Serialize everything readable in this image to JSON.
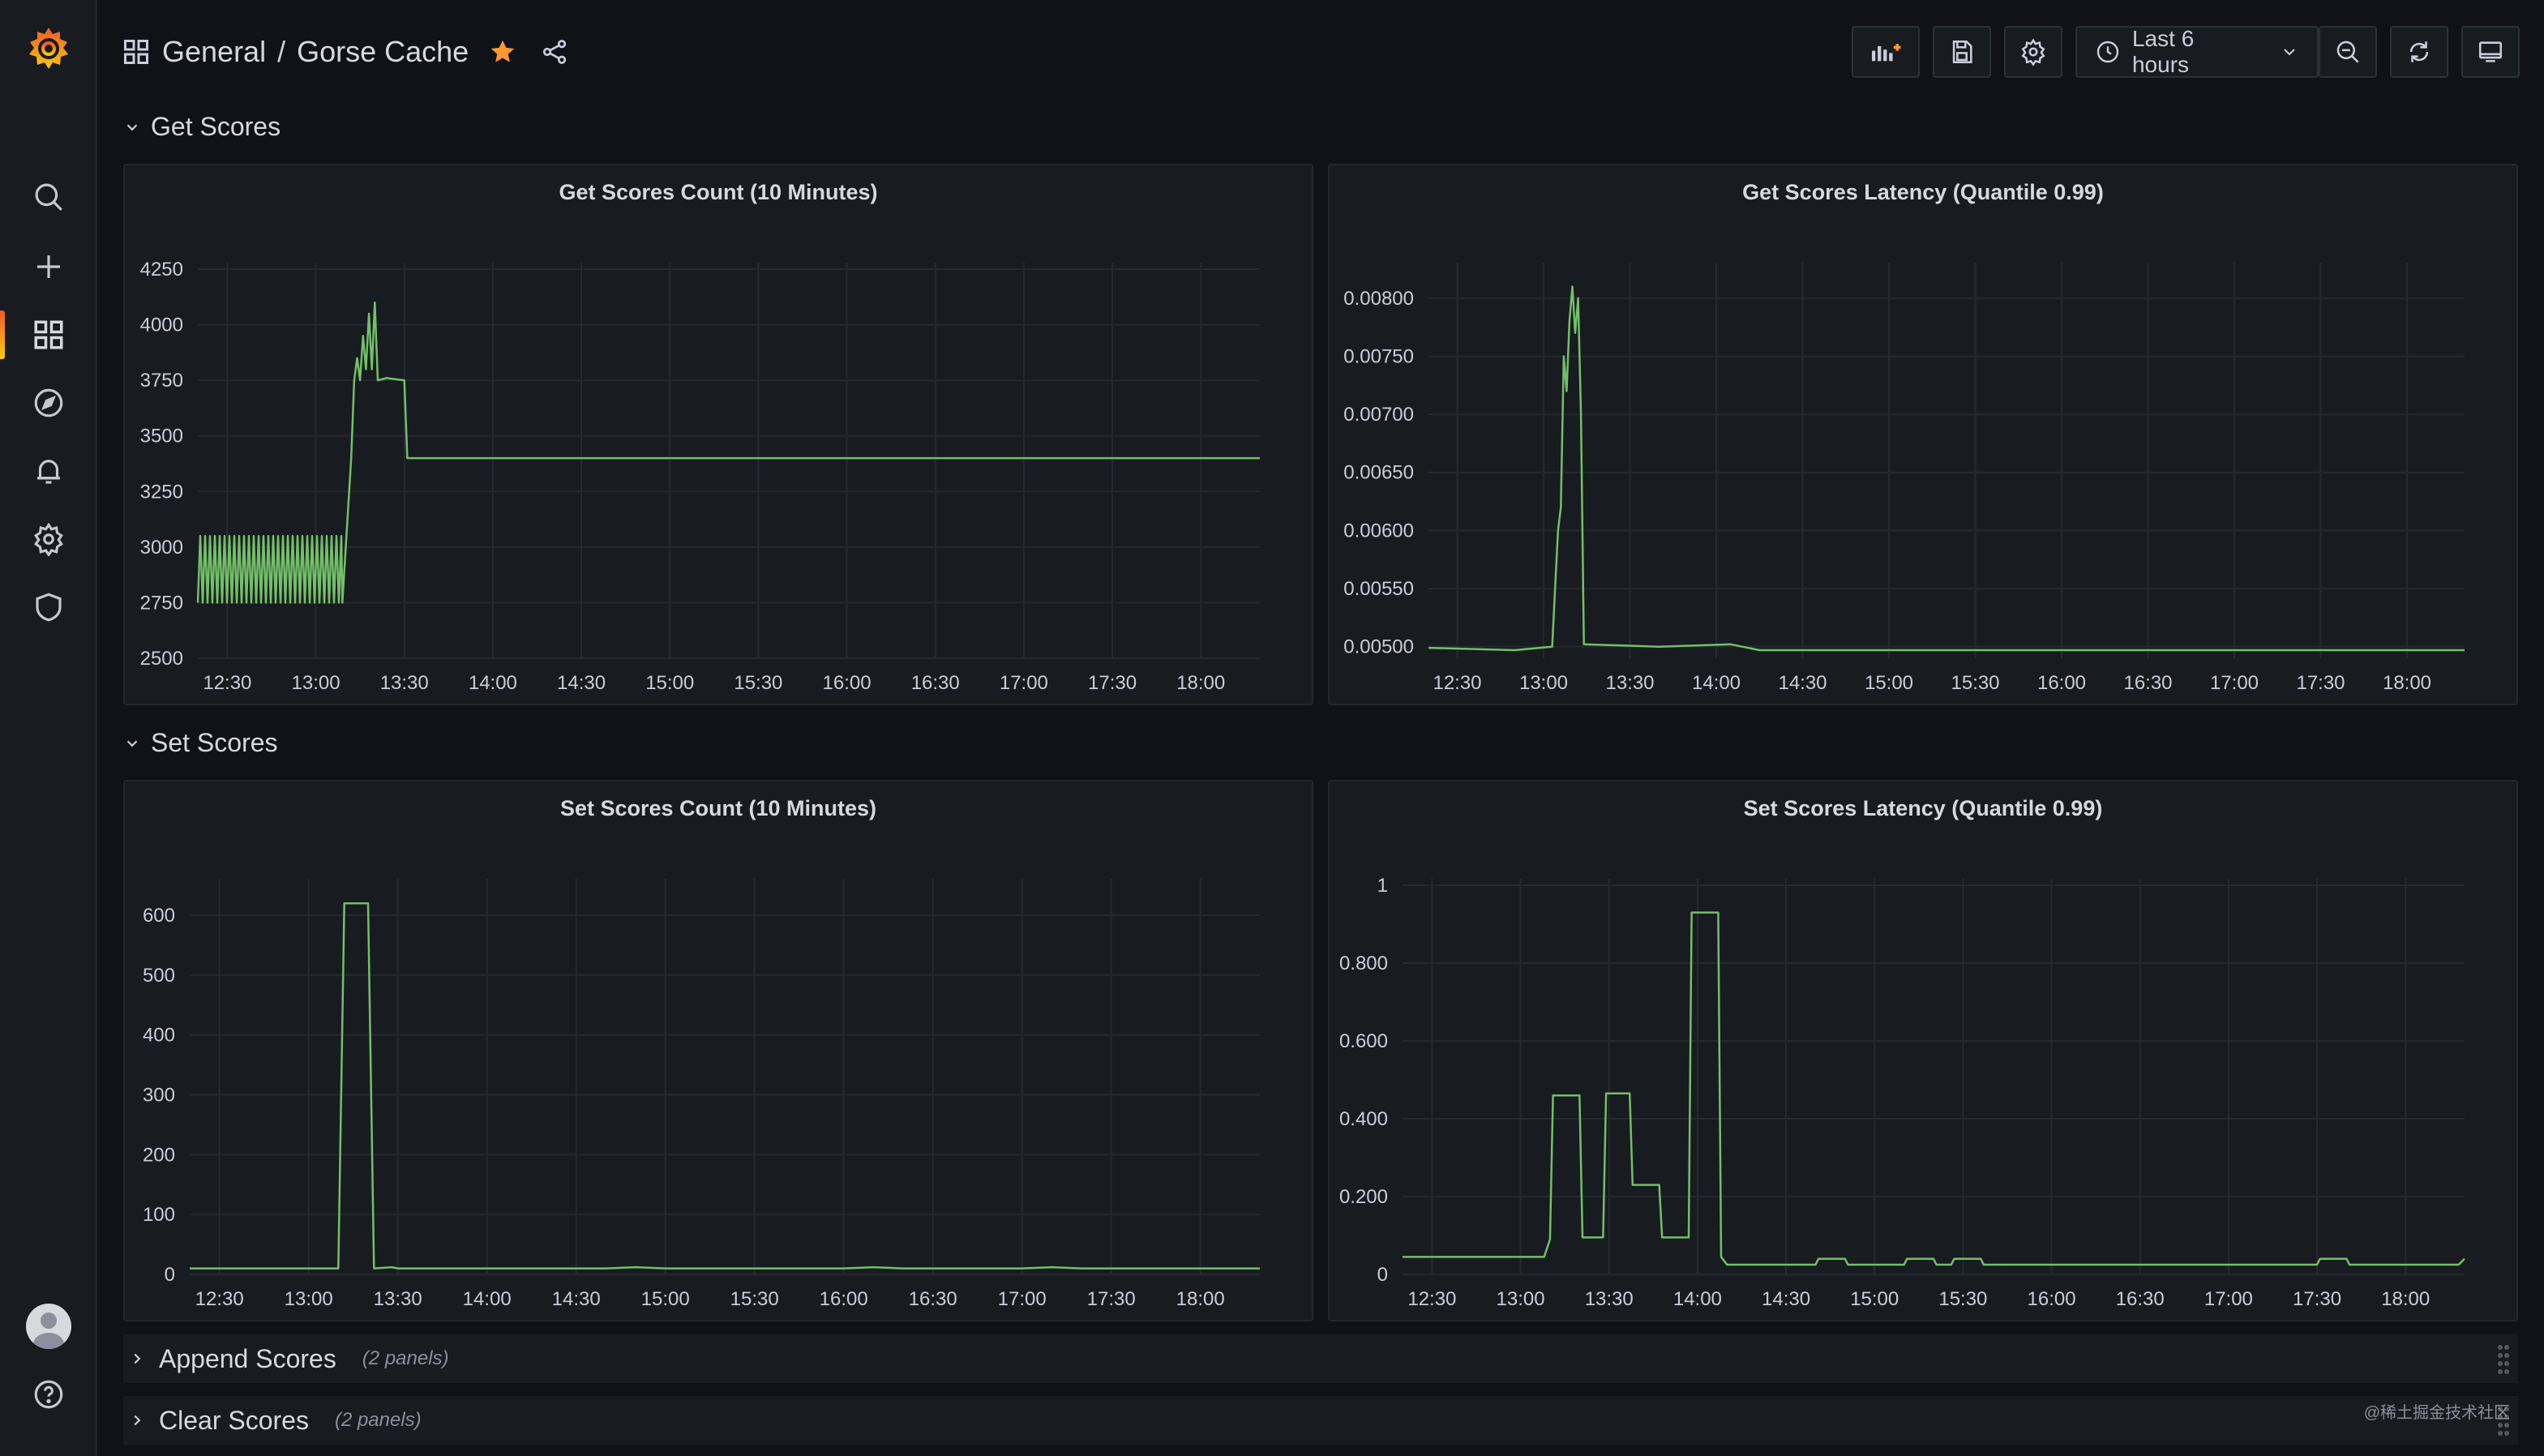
{
  "header": {
    "folder": "General",
    "separator": "/",
    "dashboard": "Gorse Cache",
    "time_range": "Last 6 hours"
  },
  "sidebar": {
    "icons": [
      "grafana-logo-icon",
      "search-icon",
      "plus-icon",
      "dashboards-icon",
      "explore-icon",
      "alerting-icon",
      "settings-icon",
      "shield-icon",
      "avatar",
      "help-icon"
    ],
    "active": "dashboards-icon"
  },
  "toolbar_icons": [
    "add-panel-icon",
    "save-icon",
    "settings-icon",
    "clock-icon",
    "chevron-down-icon",
    "zoom-out-icon",
    "refresh-icon",
    "tv-mode-icon"
  ],
  "rows": {
    "get_scores": "Get Scores",
    "set_scores": "Set Scores",
    "append_scores": "Append Scores",
    "append_count": "(2 panels)",
    "clear_scores": "Clear Scores",
    "clear_count": "(2 panels)"
  },
  "watermark": "@稀土掘金技术社区",
  "colors": {
    "series": "#73bf69",
    "accent": "#f05a28",
    "star": "#ff9830"
  },
  "chart_data": [
    {
      "type": "line",
      "title": "Get Scores Count (10 Minutes)",
      "x_ticks": [
        "12:30",
        "13:00",
        "13:30",
        "14:00",
        "14:30",
        "15:00",
        "15:30",
        "16:00",
        "16:30",
        "17:00",
        "17:30",
        "18:00"
      ],
      "y_ticks": [
        "4250",
        "4000",
        "3750",
        "3500",
        "3250",
        "3000",
        "2750",
        "2500"
      ],
      "ylim": [
        2500,
        4250
      ],
      "x_range": [
        "12:20",
        "18:20"
      ],
      "grid": true,
      "series": [
        {
          "color": "#73bf69",
          "points": [
            [
              "12:20",
              2750
            ],
            [
              "12:20",
              3050
            ],
            [
              "13:09",
              3050
            ],
            [
              "13:09",
              2750
            ],
            [
              "13:12",
              3400
            ],
            [
              "13:13",
              3750
            ],
            [
              "13:14",
              3850
            ],
            [
              "13:15",
              3750
            ],
            [
              "13:16",
              3950
            ],
            [
              "13:17",
              3800
            ],
            [
              "13:18",
              4050
            ],
            [
              "13:19",
              3800
            ],
            [
              "13:20",
              4100
            ],
            [
              "13:21",
              3750
            ],
            [
              "13:24",
              3760
            ],
            [
              "13:30",
              3750
            ],
            [
              "13:31",
              3400
            ],
            [
              "18:20",
              3400
            ]
          ]
        }
      ]
    },
    {
      "type": "line",
      "title": "Get Scores Latency (Quantile 0.99)",
      "x_ticks": [
        "12:30",
        "13:00",
        "13:30",
        "14:00",
        "14:30",
        "15:00",
        "15:30",
        "16:00",
        "16:30",
        "17:00",
        "17:30",
        "18:00"
      ],
      "y_ticks": [
        "0.00800",
        "0.00750",
        "0.00700",
        "0.00650",
        "0.00600",
        "0.00550",
        "0.00500"
      ],
      "ylim": [
        0.0049,
        0.00825
      ],
      "x_range": [
        "12:20",
        "18:20"
      ],
      "grid": true,
      "series": [
        {
          "color": "#73bf69",
          "points": [
            [
              "12:20",
              0.00499
            ],
            [
              "12:50",
              0.00497
            ],
            [
              "13:03",
              0.005
            ],
            [
              "13:05",
              0.006
            ],
            [
              "13:06",
              0.0062
            ],
            [
              "13:07",
              0.0075
            ],
            [
              "13:08",
              0.0072
            ],
            [
              "13:09",
              0.0078
            ],
            [
              "13:10",
              0.0081
            ],
            [
              "13:11",
              0.0077
            ],
            [
              "13:12",
              0.008
            ],
            [
              "13:13",
              0.007
            ],
            [
              "13:14",
              0.00502
            ],
            [
              "13:40",
              0.005
            ],
            [
              "14:05",
              0.00502
            ],
            [
              "14:15",
              0.00497
            ],
            [
              "18:20",
              0.00497
            ]
          ]
        }
      ]
    },
    {
      "type": "line",
      "title": "Set Scores Count (10 Minutes)",
      "x_ticks": [
        "12:30",
        "13:00",
        "13:30",
        "14:00",
        "14:30",
        "15:00",
        "15:30",
        "16:00",
        "16:30",
        "17:00",
        "17:30",
        "18:00"
      ],
      "y_ticks": [
        "600",
        "500",
        "400",
        "300",
        "200",
        "100",
        "0"
      ],
      "ylim": [
        0,
        650
      ],
      "x_range": [
        "12:20",
        "18:20"
      ],
      "grid": true,
      "series": [
        {
          "color": "#73bf69",
          "points": [
            [
              "12:20",
              10
            ],
            [
              "13:10",
              10
            ],
            [
              "13:12",
              620
            ],
            [
              "13:20",
              620
            ],
            [
              "13:22",
              10
            ],
            [
              "13:28",
              12
            ],
            [
              "13:30",
              10
            ],
            [
              "14:40",
              10
            ],
            [
              "14:50",
              12
            ],
            [
              "15:00",
              10
            ],
            [
              "16:00",
              10
            ],
            [
              "16:10",
              12
            ],
            [
              "16:20",
              10
            ],
            [
              "17:00",
              10
            ],
            [
              "17:10",
              12
            ],
            [
              "17:20",
              10
            ],
            [
              "18:20",
              10
            ]
          ]
        }
      ]
    },
    {
      "type": "line",
      "title": "Set Scores Latency (Quantile 0.99)",
      "x_ticks": [
        "12:30",
        "13:00",
        "13:30",
        "14:00",
        "14:30",
        "15:00",
        "15:30",
        "16:00",
        "16:30",
        "17:00",
        "17:30",
        "18:00"
      ],
      "y_ticks": [
        "1",
        "0.800",
        "0.600",
        "0.400",
        "0.200",
        "0"
      ],
      "ylim": [
        0,
        1
      ],
      "x_range": [
        "12:20",
        "18:20"
      ],
      "grid": true,
      "series": [
        {
          "color": "#73bf69",
          "points": [
            [
              "12:20",
              0.045
            ],
            [
              "13:08",
              0.045
            ],
            [
              "13:10",
              0.09
            ],
            [
              "13:11",
              0.46
            ],
            [
              "13:20",
              0.46
            ],
            [
              "13:21",
              0.095
            ],
            [
              "13:28",
              0.095
            ],
            [
              "13:29",
              0.465
            ],
            [
              "13:37",
              0.465
            ],
            [
              "13:38",
              0.23
            ],
            [
              "13:47",
              0.23
            ],
            [
              "13:48",
              0.095
            ],
            [
              "13:57",
              0.095
            ],
            [
              "13:58",
              0.93
            ],
            [
              "14:07",
              0.93
            ],
            [
              "14:08",
              0.045
            ],
            [
              "14:10",
              0.025
            ],
            [
              "14:40",
              0.025
            ],
            [
              "14:41",
              0.04
            ],
            [
              "14:50",
              0.04
            ],
            [
              "14:51",
              0.025
            ],
            [
              "15:10",
              0.025
            ],
            [
              "15:11",
              0.04
            ],
            [
              "15:20",
              0.04
            ],
            [
              "15:21",
              0.025
            ],
            [
              "15:26",
              0.025
            ],
            [
              "15:27",
              0.04
            ],
            [
              "15:36",
              0.04
            ],
            [
              "15:37",
              0.025
            ],
            [
              "17:30",
              0.025
            ],
            [
              "17:31",
              0.04
            ],
            [
              "17:40",
              0.04
            ],
            [
              "17:41",
              0.025
            ],
            [
              "18:18",
              0.025
            ],
            [
              "18:20",
              0.04
            ]
          ]
        }
      ]
    }
  ]
}
